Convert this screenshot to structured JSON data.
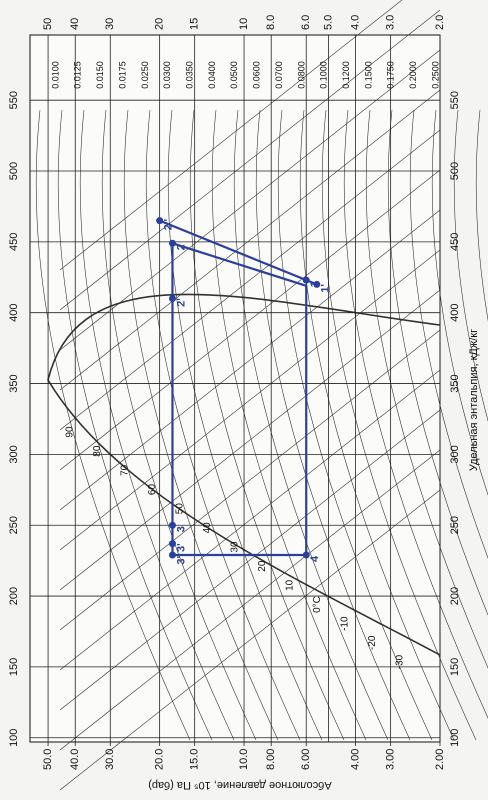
{
  "chart_data": {
    "type": "line",
    "x_label": "Удельная энтальпия, кДж/кг",
    "y_label": "Абсолютное давление, 10⁵ Па (бар)",
    "xlim": [
      97,
      596
    ],
    "xticks": [
      100,
      150,
      200,
      250,
      300,
      350,
      400,
      450,
      500,
      550
    ],
    "ylim": [
      58,
      2
    ],
    "ylog": true,
    "grid": true,
    "yticks": [
      50,
      40,
      30,
      20,
      15,
      10,
      {
        "value": 8,
        "label": "8.0"
      },
      {
        "value": 6,
        "label": "6.0"
      },
      {
        "value": 5,
        "label": "5.0"
      },
      {
        "value": 4,
        "label": "4.0"
      },
      {
        "value": 3,
        "label": "3.0"
      },
      {
        "value": 2,
        "label": "2.0"
      }
    ],
    "yticks_bottom": [
      {
        "value": 50,
        "label": "50.0"
      },
      {
        "value": 40,
        "label": "40.0"
      },
      {
        "value": 30,
        "label": "30.0"
      },
      {
        "value": 20,
        "label": "20.0"
      },
      {
        "value": 15,
        "label": "15.0"
      },
      {
        "value": 10,
        "label": "10.0"
      },
      {
        "value": 8,
        "label": "8.00"
      },
      {
        "value": 6,
        "label": "6.00"
      },
      {
        "value": 4,
        "label": "4.00"
      },
      {
        "value": 3,
        "label": "3.00"
      },
      {
        "value": 2,
        "label": "2.00"
      }
    ],
    "series": [
      {
        "color": "#2b3f9e",
        "x": [
          419,
          449,
          229,
          229,
          419
        ],
        "values": [
          6,
          18,
          18,
          6,
          6
        ]
      },
      {
        "color": "#2b3f9e",
        "x": [
          465,
          420
        ],
        "values": [
          20,
          5.5
        ]
      }
    ],
    "annotations": [
      {
        "text": "1",
        "x": 423,
        "y": 6
      },
      {
        "text": "1'",
        "x": 420,
        "y": 5.5
      },
      {
        "text": "2",
        "x": 449,
        "y": 18
      },
      {
        "text": "2'",
        "x": 410,
        "y": 18
      },
      {
        "text": "2''",
        "x": 465,
        "y": 20
      },
      {
        "text": "3",
        "x": 250,
        "y": 18
      },
      {
        "text": "3'",
        "x": 237,
        "y": 18
      },
      {
        "text": "3''",
        "x": 229,
        "y": 18
      },
      {
        "text": "4",
        "x": 229,
        "y": 6
      }
    ],
    "temperature_labels": [
      "90",
      "80",
      "70",
      "60",
      "50",
      "40",
      "30",
      "20",
      "10",
      "0°C",
      "-10",
      "-20",
      "-30"
    ],
    "volume_labels": [
      "0.0100",
      "0.0125",
      "0.0150",
      "0.0175",
      "0.0250",
      "0.0300",
      "0.0350",
      "0.0400",
      "0.0500",
      "0.0600",
      "0.0700",
      "0.0800",
      "0.1000",
      "0.1200",
      "0.1500",
      "0.1750",
      "0.2000",
      "0.2500"
    ]
  }
}
